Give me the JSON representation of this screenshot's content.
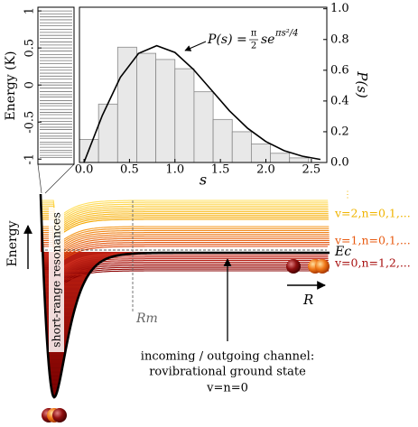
{
  "chart_data": [
    {
      "type": "eventplot",
      "ylabel": "Energy (K)",
      "values": [
        -0.98,
        -0.95,
        -0.91,
        -0.88,
        -0.84,
        -0.8,
        -0.77,
        -0.72,
        -0.69,
        -0.65,
        -0.6,
        -0.57,
        -0.53,
        -0.49,
        -0.45,
        -0.4,
        -0.37,
        -0.33,
        -0.28,
        -0.25,
        -0.21,
        -0.16,
        -0.13,
        -0.09,
        -0.04,
        0,
        0.03,
        0.08,
        0.12,
        0.16,
        0.2,
        0.24,
        0.29,
        0.33,
        0.37,
        0.41,
        0.46,
        0.5,
        0.54,
        0.58,
        0.63,
        0.67,
        0.71,
        0.75,
        0.8,
        0.84,
        0.88,
        0.92,
        0.96,
        1.0
      ],
      "color": "#777777",
      "ylim": [
        -1.07,
        1.05
      ],
      "yticks": [
        -1,
        -0.5,
        0,
        0.5,
        1
      ]
    },
    {
      "type": "histogram",
      "xlabel": "s",
      "ylabel": "P(s)",
      "bins": [
        -0.05,
        0.16,
        0.37,
        0.58,
        0.79,
        1.0,
        1.21,
        1.42,
        1.63,
        1.84,
        2.05,
        2.26,
        2.47
      ],
      "values": [
        0.15,
        0.38,
        0.75,
        0.71,
        0.67,
        0.61,
        0.46,
        0.28,
        0.2,
        0.12,
        0.06,
        0.03
      ],
      "color": "#e8e8e8",
      "line": {
        "x": [
          0,
          0.2,
          0.4,
          0.6,
          0.8,
          1.0,
          1.2,
          1.4,
          1.6,
          1.8,
          2.0,
          2.2,
          2.4,
          2.6
        ],
        "values": [
          0,
          0.304,
          0.554,
          0.71,
          0.76,
          0.716,
          0.608,
          0.472,
          0.336,
          0.222,
          0.136,
          0.077,
          0.041,
          0.02
        ],
        "color": "#000000"
      },
      "annotation": [
        "P(s) = ",
        "π",
        "2",
        "se",
        "πs²/4"
      ],
      "xlim": [
        -0.05,
        2.67
      ],
      "ylim": [
        0,
        1.01
      ],
      "xticks": [
        {
          "value": 0,
          "label": "0.0"
        },
        0.5,
        {
          "value": 1,
          "label": "1.0"
        },
        1.5,
        {
          "value": 2,
          "label": "2.0"
        },
        2.5
      ],
      "yticks": [
        {
          "value": 0,
          "label": "0.0"
        },
        0.2,
        0.4,
        0.6,
        0.8,
        {
          "value": 1,
          "label": "1.0"
        }
      ]
    }
  ],
  "diagram": {
    "energy_label": "Energy",
    "resonance_label": "short-range resonances",
    "rm_label": "Rm",
    "ec_label": "Ec",
    "r_label": "R",
    "v2_label": "v=2,n=0,1,...",
    "v1_label": "v=1,n=0,1,...",
    "v0_label": "v=0,n=1,2,...",
    "ellipsis": "⋮",
    "channel_lines": [
      "incoming / outgoing channel:",
      "rovibrational ground state",
      "v=n=0"
    ]
  }
}
